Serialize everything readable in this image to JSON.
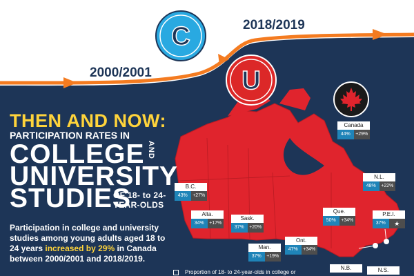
{
  "header": {
    "year_start": "2000/2001",
    "year_end": "2018/2019",
    "college_letter": "C",
    "university_letter": "U"
  },
  "title": {
    "then_and_now": "THEN AND NOW:",
    "subtitle_line1": "PARTICIPATION RATES IN",
    "word_college": "COLLEGE",
    "word_and": "AND",
    "word_university": "UNIVERSITY",
    "word_studies": "STUDIES",
    "age_line1": "OF 18- to 24-",
    "age_line2": "YEAR-OLDS"
  },
  "paragraph": {
    "before": "Participation in college and university studies among young adults aged 18 to 24 years ",
    "highlight": "increased by 29%",
    "after": " in Canada between 2000/2001 and 2018/2019."
  },
  "legend": {
    "text": "Proportion of 18- to 24-year-olds in college or"
  },
  "colors": {
    "navy": "#1d3557",
    "orange": "#f47b20",
    "college_blue": "#29a9e1",
    "university_red": "#dc2828",
    "map_red": "#e0242d",
    "value_blue": "#1f84b8",
    "change_grey": "#4d4d4d",
    "highlight_yellow": "#ffd43b"
  },
  "regions": [
    {
      "name": "Canada",
      "rate": "44%",
      "change": "+29%"
    },
    {
      "name": "B.C.",
      "rate": "43%",
      "change": "+27%"
    },
    {
      "name": "Alta.",
      "rate": "34%",
      "change": "+17%"
    },
    {
      "name": "Sask.",
      "rate": "37%",
      "change": "+20%"
    },
    {
      "name": "Man.",
      "rate": "37%",
      "change": "+19%"
    },
    {
      "name": "Ont.",
      "rate": "47%",
      "change": "+34%"
    },
    {
      "name": "Que.",
      "rate": "50%",
      "change": "+34%"
    },
    {
      "name": "N.L.",
      "rate": "48%",
      "change": "+22%"
    },
    {
      "name": "P.E.I.",
      "rate": "37%",
      "change": "★"
    },
    {
      "name": "N.B.",
      "rate": "",
      "change": ""
    },
    {
      "name": "N.S.",
      "rate": "",
      "change": ""
    }
  ]
}
